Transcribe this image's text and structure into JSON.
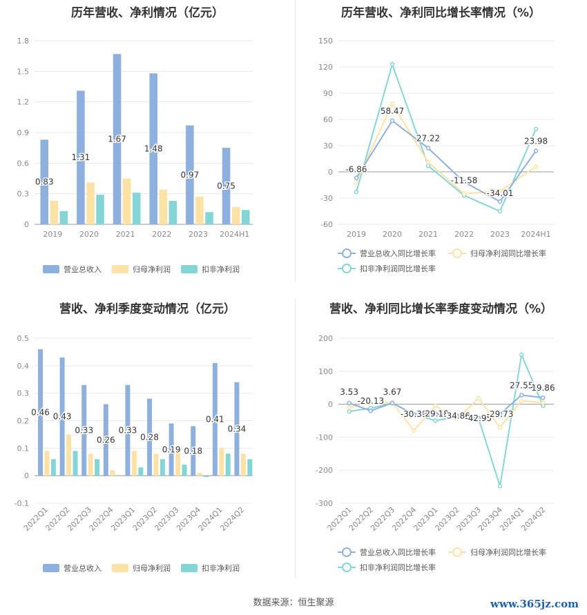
{
  "source_text": "数据来源：恒生聚源",
  "watermark": "www.365jz.com",
  "colors": {
    "rev": "#8eb0de",
    "np": "#fde2a6",
    "dnp": "#84d6d6",
    "rev_line": "#8eb0de",
    "np_line": "#fde2a6",
    "dnp_line": "#84d6d6",
    "grid": "#e8e8e8",
    "axis_text": "#888888",
    "label_text": "#333333"
  },
  "chart_data": [
    {
      "id": "annual-bar",
      "type": "bar",
      "title": "历年营收、净利情况（亿元）",
      "categories": [
        "2019",
        "2020",
        "2021",
        "2022",
        "2023",
        "2024H1"
      ],
      "series": [
        {
          "name": "营业总收入",
          "values": [
            0.83,
            1.31,
            1.67,
            1.48,
            0.97,
            0.75
          ],
          "labels": [
            "0.83",
            "1.31",
            "1.67",
            "1.48",
            "0.97",
            "0.75"
          ]
        },
        {
          "name": "归母净利润",
          "values": [
            0.23,
            0.41,
            0.45,
            0.34,
            0.27,
            0.17
          ]
        },
        {
          "name": "扣非净利润",
          "values": [
            0.13,
            0.29,
            0.31,
            0.23,
            0.12,
            0.14
          ]
        }
      ],
      "yticks": [
        "0",
        "0.3",
        "0.6",
        "0.9",
        "1.2",
        "1.5",
        "1.8"
      ],
      "ylim": [
        0,
        1.8
      ],
      "xlabel": "",
      "ylabel": "",
      "grid": true,
      "legend_position": "bottom"
    },
    {
      "id": "annual-line",
      "type": "line",
      "title": "历年营收、净利同比增长率情况（%）",
      "categories": [
        "2019",
        "2020",
        "2021",
        "2022",
        "2023",
        "2024H1"
      ],
      "series": [
        {
          "name": "营业总收入同比增长率",
          "values": [
            -6.86,
            58.47,
            27.22,
            -11.58,
            -34.01,
            23.98
          ],
          "labels": [
            "-6.86",
            "58.47",
            "27.22",
            "-11.58",
            "-34.01",
            "23.98"
          ]
        },
        {
          "name": "归母净利润同比增长率",
          "values": [
            -12,
            78,
            11,
            -25,
            -22,
            6
          ]
        },
        {
          "name": "扣非净利润同比增长率",
          "values": [
            -23,
            123,
            7,
            -27,
            -45,
            49
          ]
        }
      ],
      "yticks": [
        "-60",
        "-30",
        "0",
        "30",
        "60",
        "90",
        "120",
        "150"
      ],
      "ylim": [
        -60,
        150
      ],
      "xlabel": "",
      "ylabel": "",
      "grid": true,
      "legend_position": "bottom"
    },
    {
      "id": "quarter-bar",
      "type": "bar",
      "title": "营收、净利季度变动情况（亿元）",
      "categories": [
        "2022Q1",
        "2022Q2",
        "2022Q3",
        "2022Q4",
        "2023Q1",
        "2023Q2",
        "2023Q3",
        "2023Q4",
        "2024Q1",
        "2024Q2"
      ],
      "series": [
        {
          "name": "营业总收入",
          "values": [
            0.46,
            0.43,
            0.33,
            0.26,
            0.33,
            0.28,
            0.19,
            0.18,
            0.41,
            0.34
          ],
          "labels": [
            "0.46",
            "0.43",
            "0.33",
            "0.26",
            "0.33",
            "0.28",
            "0.19",
            "0.18",
            "0.41",
            "0.34"
          ]
        },
        {
          "name": "归母净利润",
          "values": [
            0.09,
            0.15,
            0.08,
            0.02,
            0.09,
            0.08,
            0.09,
            0.01,
            0.1,
            0.08
          ]
        },
        {
          "name": "扣非净利润",
          "values": [
            0.06,
            0.09,
            0.06,
            0.0,
            0.03,
            0.06,
            0.04,
            -0.005,
            0.08,
            0.06
          ]
        }
      ],
      "yticks": [
        "-0.1",
        "0",
        "0.1",
        "0.2",
        "0.3",
        "0.4",
        "0.5"
      ],
      "ylim": [
        -0.1,
        0.5
      ],
      "xlabel": "",
      "ylabel": "",
      "grid": true,
      "legend_position": "bottom"
    },
    {
      "id": "quarter-line",
      "type": "line",
      "title": "营收、净利同比增长率季度变动情况（%）",
      "categories": [
        "2022Q1",
        "2022Q2",
        "2022Q3",
        "2022Q4",
        "2023Q1",
        "2023Q2",
        "2023Q3",
        "2023Q4",
        "2024Q1",
        "2024Q2"
      ],
      "series": [
        {
          "name": "营业总收入同比增长率",
          "values": [
            3.53,
            -20.13,
            3.67,
            -30.39,
            -29.18,
            -34.86,
            -42.95,
            -29.73,
            27.55,
            19.86
          ],
          "labels": [
            "3.53",
            "-20.13",
            "3.67",
            "-30.39",
            "-29.18",
            "-34.86",
            "-42.95",
            "-29.73",
            "27.55",
            "19.86"
          ]
        },
        {
          "name": "归母净利润同比增长率",
          "values": [
            -10,
            5,
            5,
            -80,
            -5,
            -45,
            18,
            -70,
            10,
            5
          ]
        },
        {
          "name": "扣非净利润同比增长率",
          "values": [
            -22,
            -12,
            3,
            -30,
            -50,
            -38,
            -42,
            -248,
            150,
            -5
          ]
        }
      ],
      "yticks": [
        "-300",
        "-200",
        "-100",
        "0",
        "100",
        "200"
      ],
      "ylim": [
        -300,
        200
      ],
      "xlabel": "",
      "ylabel": "",
      "grid": true,
      "legend_position": "bottom"
    }
  ]
}
